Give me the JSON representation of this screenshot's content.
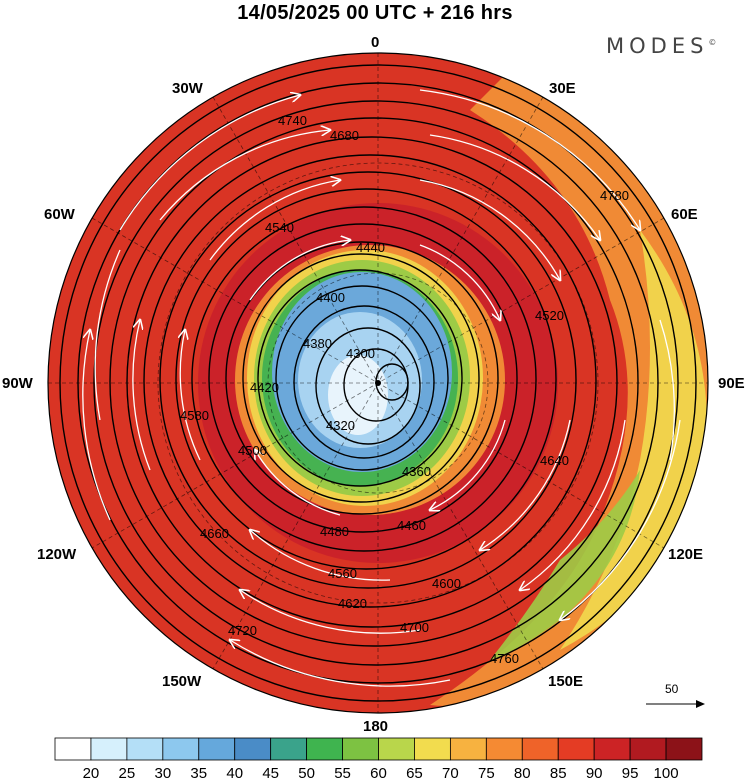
{
  "title": "14/05/2025  00 UTC  + 216 hrs",
  "brand": {
    "name": "MODES",
    "mark": "©"
  },
  "longitude_labels": {
    "lon_0": "0",
    "lon_30e": "30E",
    "lon_60e": "60E",
    "lon_90e": "90E",
    "lon_120e": "120E",
    "lon_150e": "150E",
    "lon_180": "180",
    "lon_150w": "150W",
    "lon_120w": "120W",
    "lon_90w": "90W",
    "lon_60w": "60W",
    "lon_30w": "30W"
  },
  "contour_labels": [
    "4300",
    "4320",
    "4380",
    "4360",
    "4400",
    "4420",
    "4440",
    "4460",
    "4480",
    "4500",
    "4520",
    "4540",
    "4560",
    "4580",
    "4600",
    "4620",
    "4640",
    "4660",
    "4680",
    "4700",
    "4720",
    "4740",
    "4760",
    "4780"
  ],
  "vector_reference": {
    "label": "50"
  },
  "colorbar": {
    "ticks": [
      "20",
      "25",
      "30",
      "35",
      "40",
      "45",
      "50",
      "55",
      "60",
      "65",
      "70",
      "75",
      "80",
      "85",
      "90",
      "95",
      "100"
    ],
    "colors": [
      "#ffffff",
      "#d6f0fc",
      "#b4dff7",
      "#8dc8ee",
      "#65a8dc",
      "#4a8cc7",
      "#3aa38b",
      "#3fb44f",
      "#7dc242",
      "#b9d64b",
      "#f2dc4e",
      "#f7b240",
      "#f58a33",
      "#ef6329",
      "#e43c24",
      "#cc2325",
      "#b11a20",
      "#8c1218"
    ]
  },
  "map_colors": {
    "outer": "#d93424",
    "ring_red": "#c8202a",
    "ring_orange": "#f08a35",
    "yellow": "#f1d24b",
    "green": "#46b251",
    "lightgreen": "#9dcb46",
    "blue": "#6ba8da",
    "lightblue": "#a8d3f1",
    "center": "#e8f4fc"
  }
}
